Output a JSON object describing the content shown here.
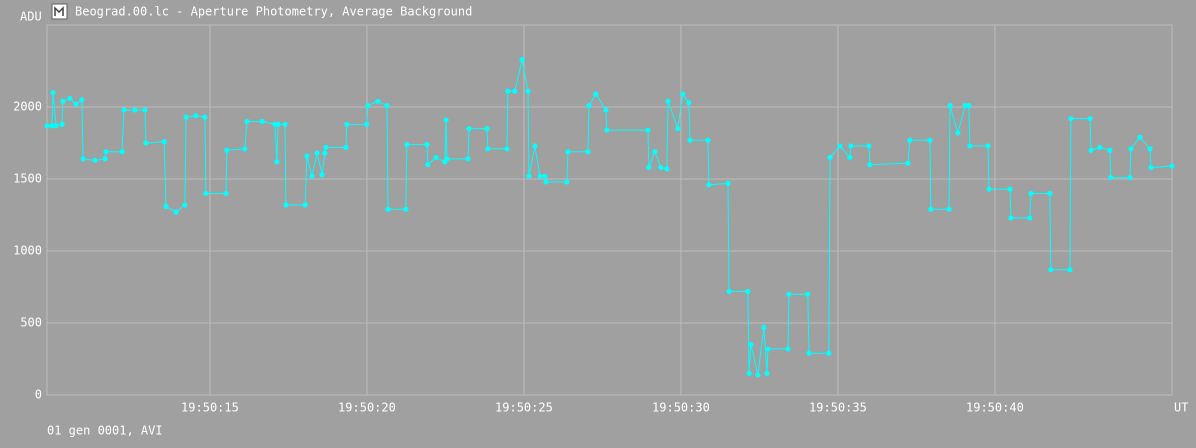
{
  "chart_data": {
    "type": "line",
    "title": "Beograd.00.lc - Aperture Photometry, Average Background",
    "caption": "01 gen 0001, AVI",
    "xlabel": "UT",
    "ylabel": "ADU",
    "color": "#00ffff",
    "grid": true,
    "xlim": [
      9.81,
      45.64
    ],
    "ylim": [
      0,
      2570
    ],
    "xticks": [
      {
        "value": 15,
        "label": "19:50:15"
      },
      {
        "value": 20,
        "label": "19:50:20"
      },
      {
        "value": 25,
        "label": "19:50:25"
      },
      {
        "value": 30,
        "label": "19:50:30"
      },
      {
        "value": 35,
        "label": "19:50:35"
      },
      {
        "value": 40,
        "label": "19:50:40"
      }
    ],
    "yticks": [
      0,
      500,
      1000,
      1500,
      2000
    ],
    "x": [
      9.81,
      9.97,
      10.0,
      10.1,
      10.29,
      10.32,
      10.54,
      10.73,
      10.92,
      10.96,
      11.34,
      11.66,
      11.69,
      12.2,
      12.26,
      12.61,
      12.93,
      12.96,
      13.54,
      13.6,
      13.92,
      14.2,
      14.24,
      14.55,
      14.84,
      14.87,
      15.51,
      15.54,
      16.11,
      16.18,
      16.66,
      17.07,
      17.13,
      17.17,
      17.39,
      17.42,
      18.03,
      18.09,
      18.25,
      18.41,
      18.57,
      18.66,
      18.69,
      19.33,
      19.36,
      19.99,
      20.03,
      20.35,
      20.64,
      20.67,
      21.24,
      21.27,
      21.91,
      21.94,
      22.2,
      22.48,
      22.52,
      22.55,
      23.22,
      23.25,
      23.82,
      23.85,
      24.46,
      24.49,
      24.71,
      24.94,
      25.13,
      25.16,
      25.35,
      25.51,
      25.67,
      25.7,
      26.37,
      26.4,
      27.04,
      27.07,
      27.29,
      27.61,
      27.64,
      28.95,
      28.98,
      29.17,
      29.36,
      29.55,
      29.59,
      29.9,
      30.06,
      30.25,
      30.29,
      30.86,
      30.89,
      31.5,
      31.53,
      32.13,
      32.17,
      32.23,
      32.45,
      32.64,
      32.74,
      32.77,
      33.41,
      33.44,
      34.04,
      34.08,
      34.71,
      34.75,
      35.06,
      35.38,
      35.41,
      35.99,
      36.02,
      37.23,
      37.29,
      37.93,
      37.96,
      38.54,
      38.57,
      38.82,
      39.05,
      39.17,
      39.2,
      39.78,
      39.81,
      40.48,
      40.51,
      41.11,
      41.15,
      41.75,
      41.78,
      42.39,
      42.42,
      43.03,
      43.06,
      43.34,
      43.66,
      43.69,
      44.3,
      44.33,
      44.62,
      44.94,
      44.97,
      45.64
    ],
    "values": [
      1870,
      1870,
      2100,
      1870,
      1880,
      2040,
      2060,
      2020,
      2050,
      1640,
      1630,
      1640,
      1690,
      1690,
      1980,
      1980,
      1980,
      1750,
      1760,
      1310,
      1270,
      1320,
      1930,
      1940,
      1930,
      1400,
      1400,
      1700,
      1710,
      1900,
      1900,
      1880,
      1620,
      1880,
      1880,
      1320,
      1320,
      1660,
      1520,
      1680,
      1530,
      1680,
      1720,
      1720,
      1880,
      1880,
      2010,
      2040,
      2010,
      1290,
      1290,
      1740,
      1740,
      1600,
      1650,
      1620,
      1910,
      1640,
      1640,
      1850,
      1850,
      1710,
      1710,
      2110,
      2110,
      2330,
      2110,
      1520,
      1730,
      1520,
      1520,
      1480,
      1480,
      1690,
      1690,
      2010,
      2090,
      1980,
      1840,
      1840,
      1580,
      1690,
      1580,
      1570,
      2040,
      1850,
      2090,
      2030,
      1770,
      1770,
      1460,
      1470,
      720,
      720,
      150,
      350,
      140,
      470,
      150,
      320,
      320,
      700,
      700,
      290,
      290,
      1650,
      1730,
      1650,
      1730,
      1730,
      1600,
      1610,
      1770,
      1770,
      1290,
      1290,
      2010,
      1820,
      2010,
      2010,
      1730,
      1730,
      1430,
      1430,
      1230,
      1230,
      1400,
      1400,
      870,
      870,
      1920,
      1920,
      1700,
      1720,
      1700,
      1510,
      1510,
      1710,
      1790,
      1710,
      1580,
      1590
    ]
  }
}
